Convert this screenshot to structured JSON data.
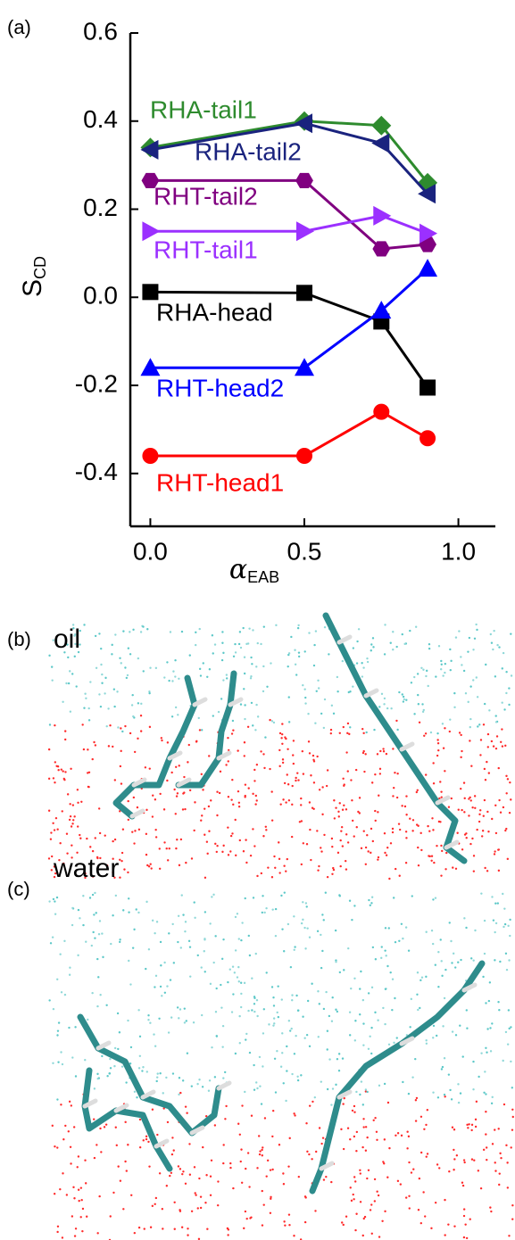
{
  "chart_data": {
    "type": "line",
    "panel_label": "(a)",
    "xlabel": {
      "symbol": "α",
      "sub": "EAB"
    },
    "ylabel": {
      "main": "S",
      "sub": "CD"
    },
    "x": [
      0,
      0.5,
      0.75,
      0.9
    ],
    "xlim": [
      -0.065,
      1.12
    ],
    "ylim": [
      -0.52,
      0.6
    ],
    "xticks": [
      {
        "value": 0,
        "label": "0.0"
      },
      {
        "value": 0.5,
        "label": "0.5"
      },
      {
        "value": 1,
        "label": "1.0"
      }
    ],
    "yticks": [
      {
        "value": -0.4,
        "label": "-0.4"
      },
      {
        "value": -0.2,
        "label": "-0.2"
      },
      {
        "value": 0,
        "label": "0.0"
      },
      {
        "value": 0.2,
        "label": "0.2"
      },
      {
        "value": 0.4,
        "label": "0.4"
      },
      {
        "value": 0.6,
        "label": "0.6"
      }
    ],
    "series": [
      {
        "name": "RHA-tail1",
        "color": "#2e8b2e",
        "marker": "diamond",
        "values": [
          0.34,
          0.4,
          0.39,
          0.26
        ]
      },
      {
        "name": "RHA-tail2",
        "color": "#1a237e",
        "marker": "left",
        "values": [
          0.335,
          0.395,
          0.35,
          0.235
        ]
      },
      {
        "name": "RHT-tail2",
        "color": "#800080",
        "marker": "hexagon",
        "values": [
          0.265,
          0.265,
          0.11,
          0.12
        ]
      },
      {
        "name": "RHT-tail1",
        "color": "#9b30ff",
        "marker": "right",
        "values": [
          0.15,
          0.15,
          0.185,
          0.145
        ]
      },
      {
        "name": "RHA-head",
        "color": "#000000",
        "marker": "square",
        "values": [
          0.012,
          0.01,
          -0.055,
          -0.205
        ]
      },
      {
        "name": "RHT-head2",
        "color": "#0000ff",
        "marker": "up",
        "values": [
          -0.16,
          -0.16,
          -0.03,
          0.065
        ]
      },
      {
        "name": "RHT-head1",
        "color": "#ff0000",
        "marker": "circle",
        "values": [
          -0.36,
          -0.36,
          -0.26,
          -0.32
        ]
      }
    ]
  },
  "panels": {
    "b": {
      "label": "(b)",
      "top": "oil",
      "bottom": "water"
    },
    "c": {
      "label": "(c)"
    }
  }
}
